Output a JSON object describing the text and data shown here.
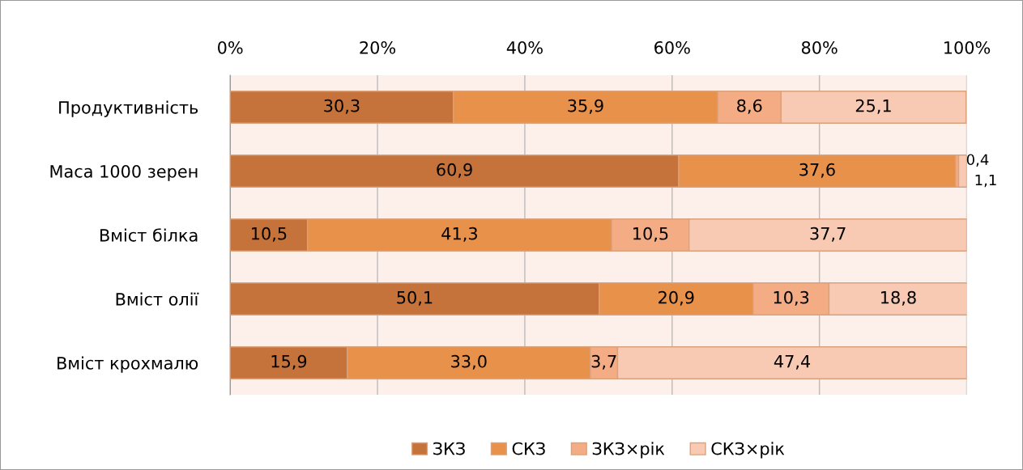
{
  "chart_data": {
    "type": "bar",
    "orientation": "horizontal",
    "stacked": true,
    "categories": [
      "Продуктивність",
      "Маса 1000 зерен",
      "Вміст білка",
      "Вміст олії",
      "Вміст крохмалю"
    ],
    "series": [
      {
        "name": "ЗКЗ",
        "color": "#c5733a",
        "values": [
          30.3,
          60.9,
          10.5,
          50.1,
          15.9
        ],
        "value_labels": [
          "30,3",
          "60,9",
          "10,5",
          "50,1",
          "15,9"
        ]
      },
      {
        "name": "СКЗ",
        "color": "#e8914a",
        "values": [
          35.9,
          37.6,
          41.3,
          20.9,
          33.0
        ],
        "value_labels": [
          "35,9",
          "37,6",
          "41,3",
          "20,9",
          "33,0"
        ]
      },
      {
        "name": "ЗКЗ×рік",
        "color": "#f4ac85",
        "values": [
          8.6,
          0.4,
          10.5,
          10.3,
          3.7
        ],
        "value_labels": [
          "8,6",
          "0,4",
          "10,5",
          "10,3",
          "3,7"
        ]
      },
      {
        "name": "СКЗ×рік",
        "color": "#f9cab3",
        "values": [
          25.1,
          1.1,
          37.7,
          18.8,
          47.4
        ],
        "value_labels": [
          "25,1",
          "1,1",
          "37,7",
          "18,8",
          "47,4"
        ]
      }
    ],
    "xlim": [
      0,
      100
    ],
    "xticks": [
      {
        "value": 0,
        "label": "0%"
      },
      {
        "value": 20,
        "label": "20%"
      },
      {
        "value": 40,
        "label": "40%"
      },
      {
        "value": 60,
        "label": "60%"
      },
      {
        "value": 80,
        "label": "80%"
      },
      {
        "value": 100,
        "label": "100%"
      }
    ],
    "grid": "x",
    "legend": "bottom"
  }
}
